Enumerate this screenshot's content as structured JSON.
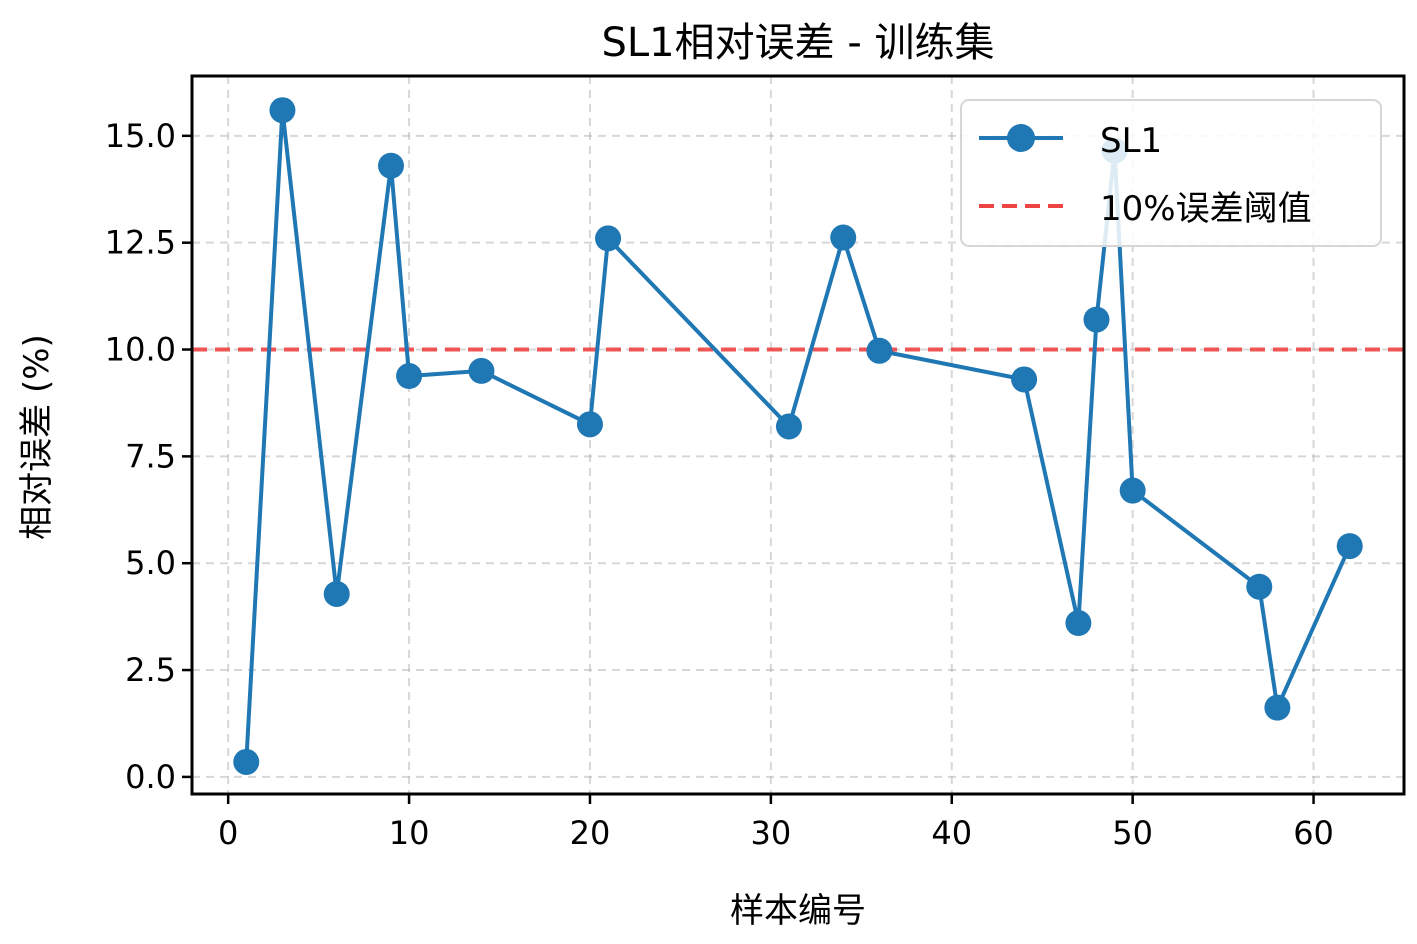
{
  "chart_data": {
    "type": "line",
    "title": "SL1相对误差 - 训练集",
    "xlabel": "样本编号",
    "ylabel": "相对误差 (%)",
    "xlim": [
      -2,
      65
    ],
    "ylim": [
      -0.4,
      16.4
    ],
    "xticks": [
      0,
      10,
      20,
      30,
      40,
      50,
      60
    ],
    "xtick_labels": [
      "0",
      "10",
      "20",
      "30",
      "40",
      "50",
      "60"
    ],
    "yticks": [
      0,
      2.5,
      5,
      7.5,
      10,
      12.5,
      15
    ],
    "ytick_labels": [
      "0.0",
      "2.5",
      "5.0",
      "7.5",
      "10.0",
      "12.5",
      "15.0"
    ],
    "grid": true,
    "legend_position": "top-right",
    "series": [
      {
        "name": "SL1",
        "color": "#1f77b4",
        "marker": "circle",
        "x": [
          1,
          3,
          6,
          9,
          10,
          14,
          20,
          21,
          31,
          34,
          36,
          44,
          47,
          48,
          49,
          50,
          57,
          58,
          62
        ],
        "y": [
          0.35,
          15.6,
          4.28,
          14.3,
          9.38,
          9.5,
          8.25,
          12.6,
          8.2,
          12.62,
          9.97,
          9.3,
          3.6,
          10.7,
          14.65,
          6.7,
          4.45,
          1.62,
          5.4
        ]
      }
    ],
    "reference_lines": [
      {
        "name": "10%误差阈值",
        "orientation": "horizontal",
        "value": 10,
        "color": "#ef4444",
        "style": "dashed"
      }
    ]
  }
}
